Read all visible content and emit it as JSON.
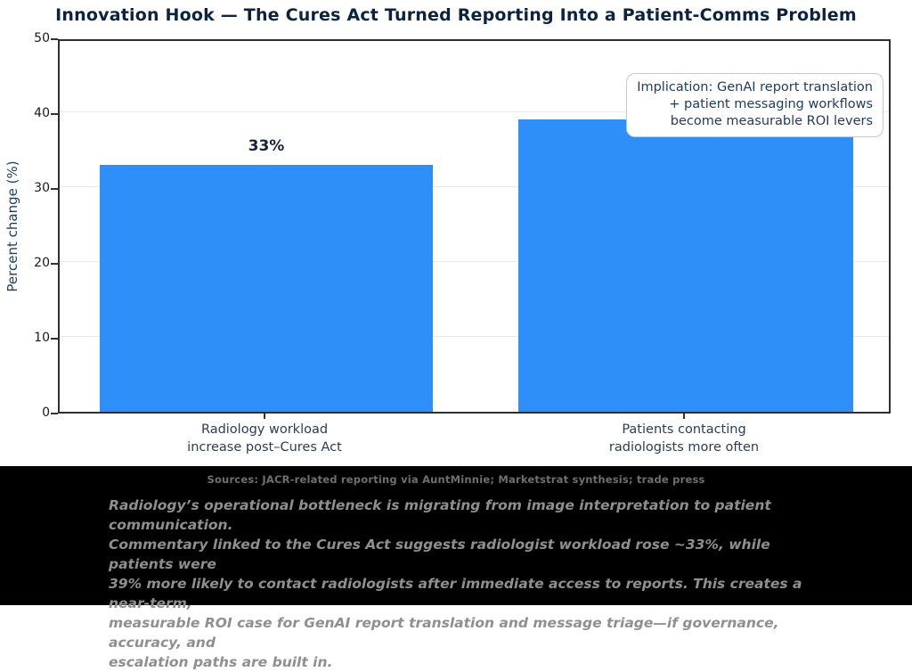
{
  "chart": {
    "title": "Innovation Hook — The Cures Act Turned Reporting Into a Patient-Comms Problem",
    "ylabel": "Percent change (%)",
    "data_label": "33%",
    "yticks": [
      "50",
      "40",
      "30",
      "20",
      "10",
      "0"
    ],
    "annotation_lines": [
      "Implication: GenAI report translation",
      "+ patient messaging workflows",
      "become measurable ROI levers"
    ],
    "categories": [
      [
        "Radiology workload",
        "increase post–Cures Act"
      ],
      [
        "Patients contacting",
        "radiologists more often"
      ]
    ]
  },
  "chart_data": {
    "type": "bar",
    "title": "Innovation Hook — The Cures Act Turned Reporting Into a Patient-Comms Problem",
    "categories": [
      "Radiology workload increase post–Cures Act",
      "Patients contacting radiologists more often"
    ],
    "values": [
      33,
      39
    ],
    "xlabel": "",
    "ylabel": "Percent change (%)",
    "ylim": [
      0,
      50
    ],
    "yticks": [
      0,
      10,
      20,
      30,
      40,
      50
    ],
    "bar_color": "#2d8ff7",
    "grid": "horizontal",
    "legend": "none",
    "data_labels": [
      "33%",
      null
    ],
    "annotation": "Implication: GenAI report translation + patient messaging workflows become measurable ROI levers",
    "annotation_position": "top-right"
  },
  "footer": {
    "sources": "Sources: JACR-related reporting via AuntMinnie; Marketstrat synthesis; trade press",
    "commentary_lines": [
      "Radiology’s operational bottleneck is migrating from image interpretation to patient communication.",
      "Commentary linked to the Cures Act suggests radiologist workload rose ~33%, while patients were",
      "39% more likely to contact radiologists after immediate access to reports. This creates a near-term,",
      "measurable ROI case for GenAI report translation and message triage—if governance, accuracy, and",
      "escalation paths are built in."
    ]
  },
  "colors": {
    "bar": "#2d8ff7",
    "title_text": "#0c2340",
    "axis_label_text": "#1e3f6b",
    "category_text": "#2b3d55",
    "annotation_text": "#1e3a5f",
    "footer_background": "#000000",
    "sources_text": "#6f6f6f",
    "commentary_text": "#8f8f8f"
  }
}
